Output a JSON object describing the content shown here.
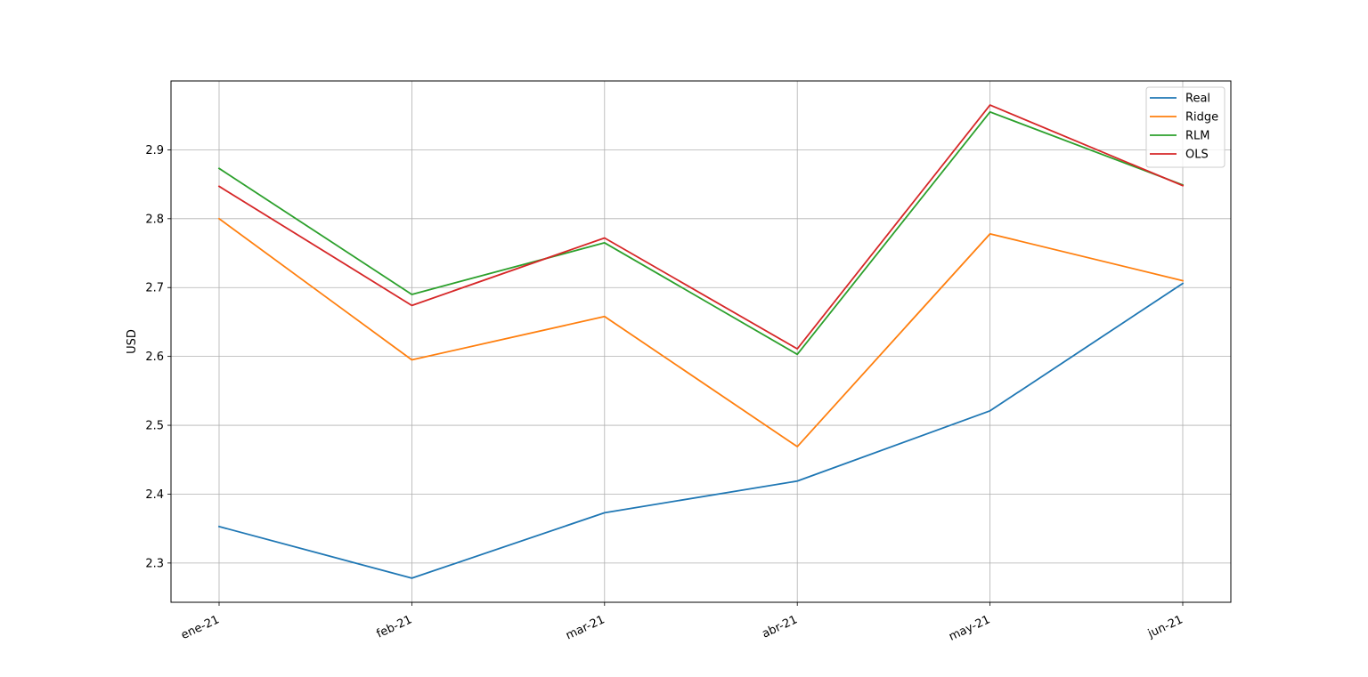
{
  "chart_data": {
    "type": "line",
    "title": "",
    "xlabel": "",
    "ylabel": "USD",
    "categories": [
      "ene-21",
      "feb-21",
      "mar-21",
      "abr-21",
      "may-21",
      "jun-21"
    ],
    "ylim": [
      2.243,
      3.0
    ],
    "yticks": [
      "2.3",
      "2.4",
      "2.5",
      "2.6",
      "2.7",
      "2.8",
      "2.9"
    ],
    "grid": true,
    "legend_position": "top-right",
    "series": [
      {
        "name": "Real",
        "color": "#1f77b4",
        "values": [
          2.353,
          2.278,
          2.373,
          2.419,
          2.521,
          2.706
        ]
      },
      {
        "name": "Ridge",
        "color": "#ff7f0e",
        "values": [
          2.8,
          2.595,
          2.658,
          2.469,
          2.778,
          2.71
        ]
      },
      {
        "name": "RLM",
        "color": "#2ca02c",
        "values": [
          2.873,
          2.69,
          2.765,
          2.603,
          2.955,
          2.849
        ]
      },
      {
        "name": "OLS",
        "color": "#d62728",
        "values": [
          2.847,
          2.674,
          2.772,
          2.611,
          2.965,
          2.848
        ]
      }
    ]
  }
}
